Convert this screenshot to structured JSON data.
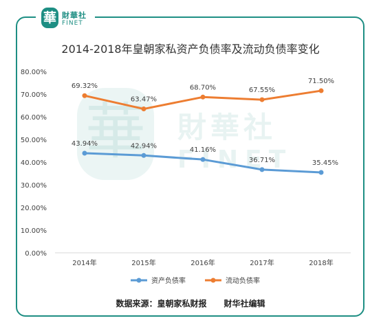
{
  "logo": {
    "seal_char": "華",
    "cn": "財華社",
    "en": "FINET"
  },
  "watermark": {
    "seal_char": "華",
    "cn": "財華社",
    "en": "FINET"
  },
  "source_note": "数据来源：皇朝家私财报      财华社编辑",
  "colors": {
    "frame": "#1d8e83",
    "series_debt": "#5b9bd5",
    "series_current": "#ed7d31"
  },
  "chart_data": {
    "type": "line",
    "title": "2014-2018年皇朝家私资产负债率及流动负债率变化",
    "categories": [
      "2014年",
      "2015年",
      "2016年",
      "2017年",
      "2018年"
    ],
    "ylim": [
      0,
      80
    ],
    "yticks": [
      "0.00%",
      "10.00%",
      "20.00%",
      "30.00%",
      "40.00%",
      "50.00%",
      "60.00%",
      "70.00%",
      "80.00%"
    ],
    "series": [
      {
        "name": "资产负债率",
        "values": [
          43.94,
          42.94,
          41.16,
          36.71,
          35.45
        ],
        "labels": [
          "43.94%",
          "42.94%",
          "41.16%",
          "36.71%",
          "35.45%"
        ]
      },
      {
        "name": "流动负债率",
        "values": [
          69.32,
          63.47,
          68.7,
          67.55,
          71.5
        ],
        "labels": [
          "69.32%",
          "63.47%",
          "68.70%",
          "67.55%",
          "71.50%"
        ]
      }
    ],
    "legend": "bottom",
    "grid": false
  }
}
